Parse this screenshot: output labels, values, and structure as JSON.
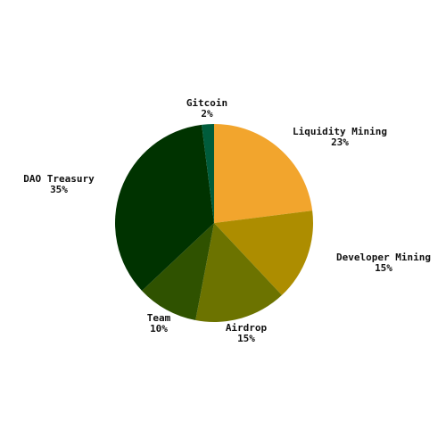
{
  "chart_data": {
    "type": "pie",
    "title": "",
    "start": "top",
    "direction": "clockwise",
    "slices": [
      {
        "label": "Liquidity Mining",
        "percent_label": "23%",
        "value": 23,
        "color": "#f2a52d"
      },
      {
        "label": "Developer Mining",
        "percent_label": "15%",
        "value": 15,
        "color": "#ad8d00"
      },
      {
        "label": "Airdrop",
        "percent_label": "15%",
        "value": 15,
        "color": "#6c7300"
      },
      {
        "label": "Team",
        "percent_label": "10%",
        "value": 10,
        "color": "#2f5200"
      },
      {
        "label": "DAO Treasury",
        "percent_label": "35%",
        "value": 35,
        "color": "#003300"
      },
      {
        "label": "Gitcoin",
        "percent_label": "2%",
        "value": 2,
        "color": "#005c3b"
      }
    ]
  }
}
